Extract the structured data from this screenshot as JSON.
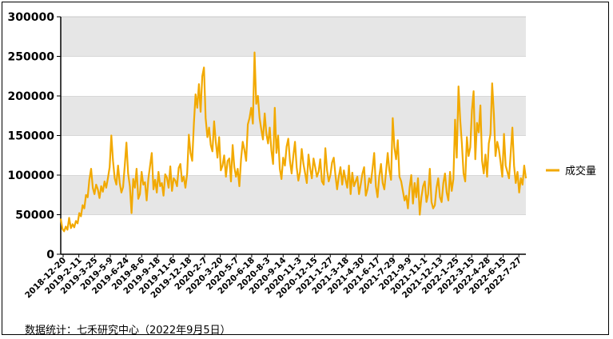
{
  "chart_data": {
    "type": "line",
    "title": "",
    "xlabel": "",
    "ylabel": "",
    "ylim": [
      0,
      300000
    ],
    "yticks": [
      0,
      50000,
      100000,
      150000,
      200000,
      250000,
      300000
    ],
    "ytick_labels": [
      "0",
      "50000",
      "100000",
      "150000",
      "200000",
      "250000",
      "300000"
    ],
    "grid": "horizontal bands",
    "legend_position": "right",
    "x_tick_labels": [
      "2018-12-20",
      "2019-2-11",
      "2019-3-25",
      "2019-5-9",
      "2019-6-24",
      "2019-8-6",
      "2019-9-18",
      "2019-11-6",
      "2019-12-18",
      "2020-2-7",
      "2020-3-20",
      "2020-5-7",
      "2020-6-18",
      "2020-8-3",
      "2020-9-14",
      "2020-11-3",
      "2020-12-15",
      "2021-1-27",
      "2021-3-18",
      "2021-4-30",
      "2021-6-17",
      "2021-7-29",
      "2021-9-9",
      "2021-11-1",
      "2021-12-13",
      "2022-1-25",
      "2022-3-15",
      "2022-4-28",
      "2022-6-15",
      "2022-7-27"
    ],
    "series": [
      {
        "name": "成交量",
        "color": "#F2A900",
        "values": [
          45000,
          32000,
          29000,
          35000,
          31000,
          46000,
          33000,
          38000,
          34000,
          42000,
          39000,
          52000,
          48000,
          62000,
          58000,
          75000,
          72000,
          94000,
          108000,
          84000,
          76000,
          88000,
          82000,
          71000,
          86000,
          79000,
          92000,
          84000,
          96000,
          110000,
          150000,
          118000,
          96000,
          88000,
          112000,
          90000,
          78000,
          85000,
          112000,
          141000,
          102000,
          86000,
          52000,
          95000,
          84000,
          108000,
          70000,
          76000,
          104000,
          88000,
          91000,
          68000,
          96000,
          112000,
          128000,
          82000,
          94000,
          78000,
          104000,
          86000,
          90000,
          74000,
          101000,
          97000,
          84000,
          111000,
          80000,
          96000,
          93000,
          86000,
          109000,
          114000,
          92000,
          98000,
          84000,
          102000,
          151000,
          128000,
          118000,
          165000,
          202000,
          185000,
          215000,
          180000,
          225000,
          236000,
          172000,
          148000,
          160000,
          138000,
          130000,
          168000,
          142000,
          122000,
          148000,
          106000,
          112000,
          125000,
          98000,
          118000,
          121000,
          92000,
          138000,
          110000,
          98000,
          108000,
          86000,
          120000,
          142000,
          132000,
          118000,
          164000,
          172000,
          185000,
          165000,
          255000,
          190000,
          200000,
          172000,
          158000,
          145000,
          178000,
          152000,
          140000,
          160000,
          131000,
          114000,
          185000,
          128000,
          150000,
          108000,
          95000,
          122000,
          112000,
          136000,
          146000,
          118000,
          102000,
          124000,
          142000,
          110000,
          93000,
          104000,
          133000,
          114000,
          102000,
          90000,
          126000,
          108000,
          96000,
          121000,
          110000,
          98000,
          104000,
          120000,
          92000,
          88000,
          134000,
          106000,
          92000,
          100000,
          116000,
          122000,
          100000,
          82000,
          98000,
          110000,
          88000,
          106000,
          94000,
          84000,
          112000,
          76000,
          103000,
          86000,
          92000,
          98000,
          76000,
          88000,
          102000,
          110000,
          74000,
          82000,
          96000,
          90000,
          108000,
          128000,
          86000,
          72000,
          98000,
          114000,
          90000,
          82000,
          104000,
          128000,
          106000,
          94000,
          172000,
          135000,
          120000,
          144000,
          98000,
          92000,
          80000,
          68000,
          74000,
          58000,
          84000,
          100000,
          64000,
          90000,
          72000,
          96000,
          50000,
          72000,
          86000,
          92000,
          66000,
          76000,
          108000,
          66000,
          58000,
          62000,
          84000,
          96000,
          72000,
          66000,
          90000,
          102000,
          78000,
          68000,
          104000,
          80000,
          95000,
          170000,
          122000,
          212000,
          170000,
          140000,
          102000,
          92000,
          148000,
          124000,
          135000,
          182000,
          206000,
          120000,
          166000,
          154000,
          188000,
          118000,
          102000,
          126000,
          98000,
          140000,
          152000,
          216000,
          178000,
          124000,
          142000,
          132000,
          116000,
          98000,
          152000,
          112000,
          104000,
          96000,
          128000,
          160000,
          112000,
          90000,
          104000,
          78000,
          96000,
          88000,
          112000,
          96000
        ]
      }
    ]
  },
  "legend": {
    "label": "成交量"
  },
  "source_note": "数据统计：七禾研究中心（2022年9月5日）"
}
